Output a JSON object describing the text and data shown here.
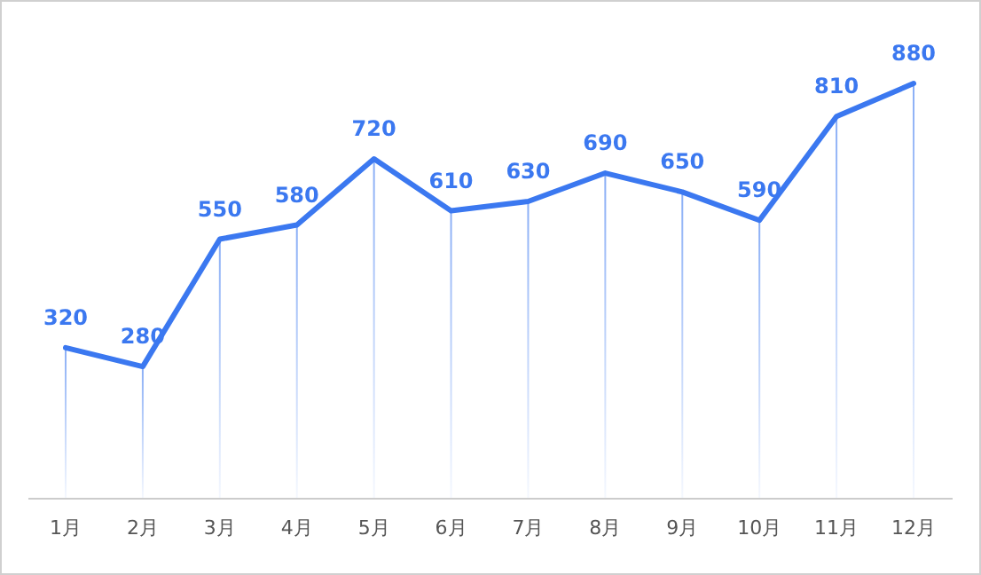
{
  "chart_data": {
    "type": "line",
    "categories": [
      "1月",
      "2月",
      "3月",
      "4月",
      "5月",
      "6月",
      "7月",
      "8月",
      "9月",
      "10月",
      "11月",
      "12月"
    ],
    "series": [
      {
        "color": "#3b78f0",
        "values": [
          320,
          280,
          550,
          580,
          720,
          610,
          630,
          690,
          650,
          590,
          810,
          880
        ],
        "value_labels": [
          "320",
          "280",
          "550",
          "580",
          "720",
          "610",
          "630",
          "690",
          "650",
          "590",
          "810",
          "880"
        ]
      },
      {
        "type": "bar",
        "color": "#3b78f0",
        "values": [
          320,
          280,
          550,
          580,
          720,
          610,
          630,
          690,
          650,
          590,
          810,
          880
        ]
      }
    ],
    "tick_labels": "x",
    "marker": "none",
    "line_style": "solid"
  }
}
